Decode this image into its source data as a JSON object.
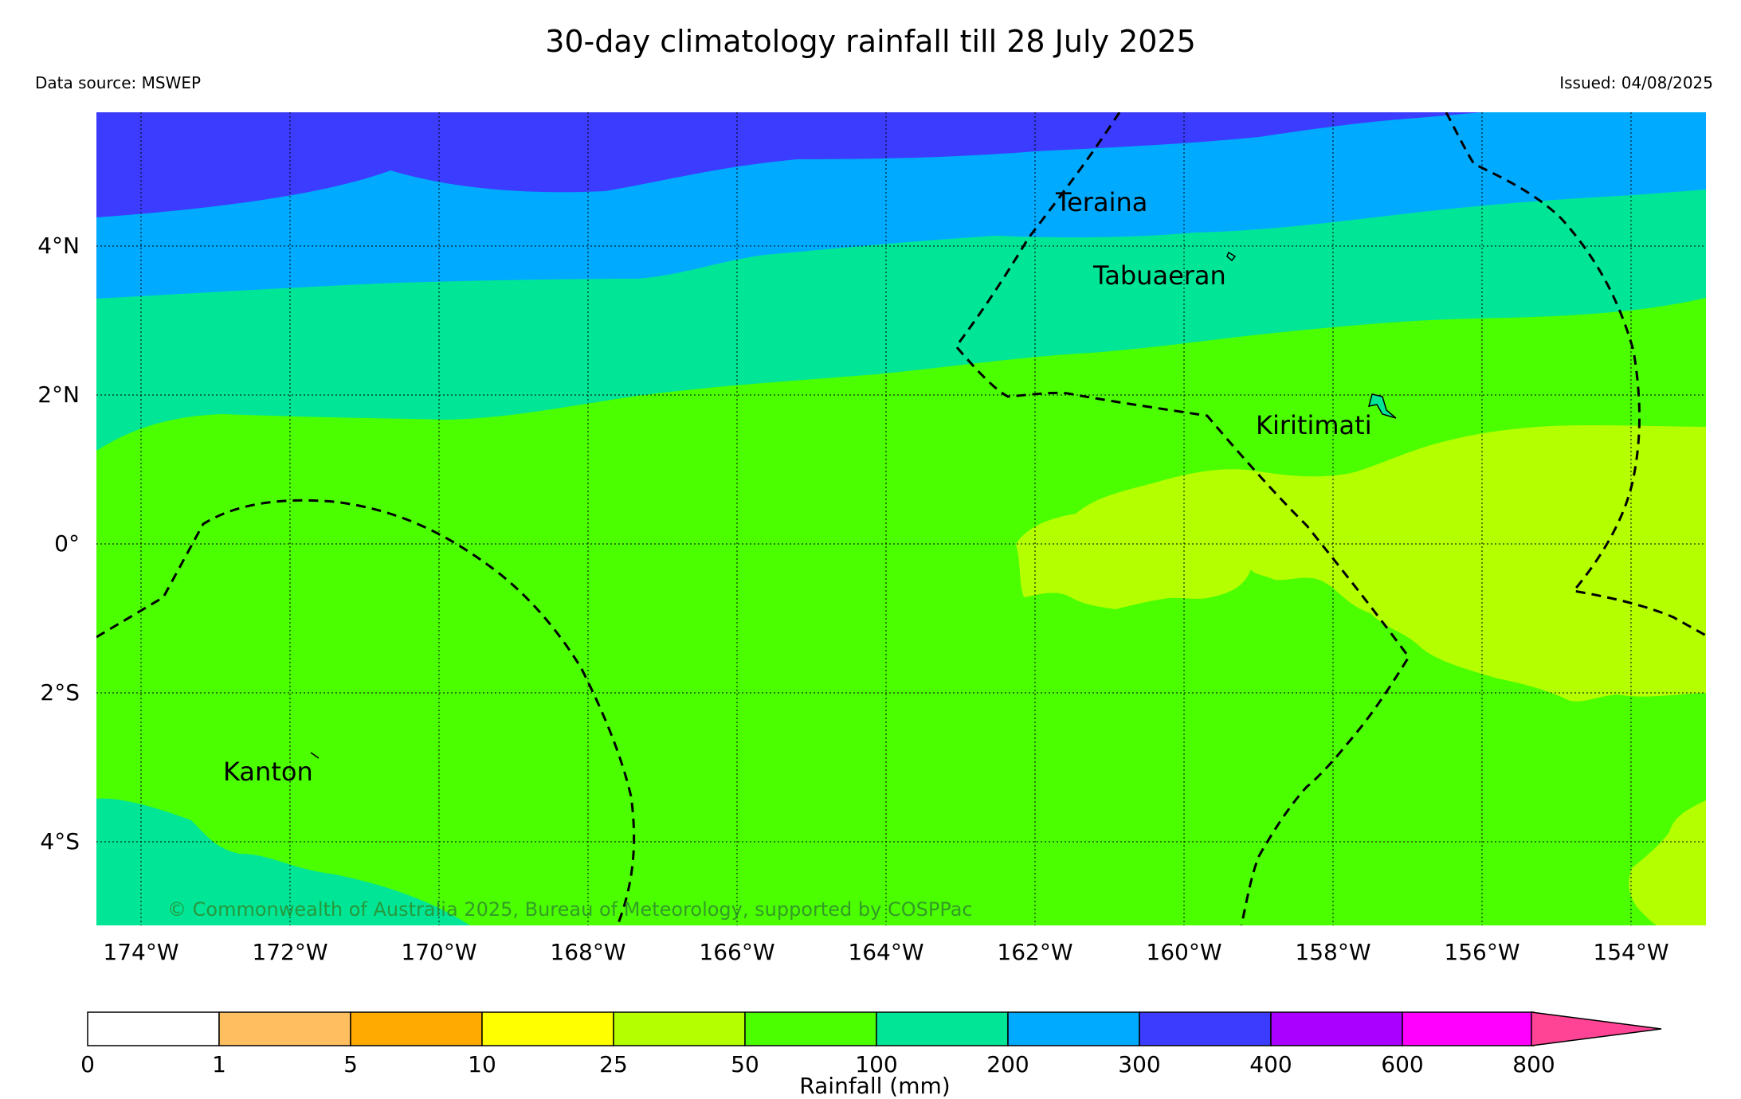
{
  "title": "30-day climatology rainfall till 28 July 2025",
  "data_source": "Data source: MSWEP",
  "issued": "Issued: 04/08/2025",
  "copyright": "© Commonwealth of Australia 2025, Bureau of Meteorology, supported by COSPPac",
  "lat_labels": [
    "4°N",
    "2°N",
    "0°",
    "2°S",
    "4°S"
  ],
  "lon_labels": [
    "174°W",
    "172°W",
    "170°W",
    "168°W",
    "166°W",
    "164°W",
    "162°W",
    "160°W",
    "158°W",
    "156°W",
    "154°W"
  ],
  "places": [
    "Teraina",
    "Tabuaeran",
    "Kiritimati",
    "Kanton"
  ],
  "colorbar": {
    "title": "Rainfall (mm)",
    "ticks": [
      "0",
      "1",
      "5",
      "10",
      "25",
      "50",
      "100",
      "200",
      "300",
      "400",
      "600",
      "800"
    ],
    "colors": [
      "#ffffff",
      "#ffbf60",
      "#ffaa00",
      "#ffff00",
      "#b4ff00",
      "#4cff00",
      "#00e696",
      "#00aaff",
      "#3c3cff",
      "#aa00ff",
      "#ff00ff",
      "#ff4496"
    ]
  },
  "legend_colors": {
    "band_300_400": "#3c3cff",
    "band_200_300": "#00aaff",
    "band_100_200": "#00e696",
    "band_50_100": "#4cff00",
    "band_25_50": "#b4ff00"
  }
}
